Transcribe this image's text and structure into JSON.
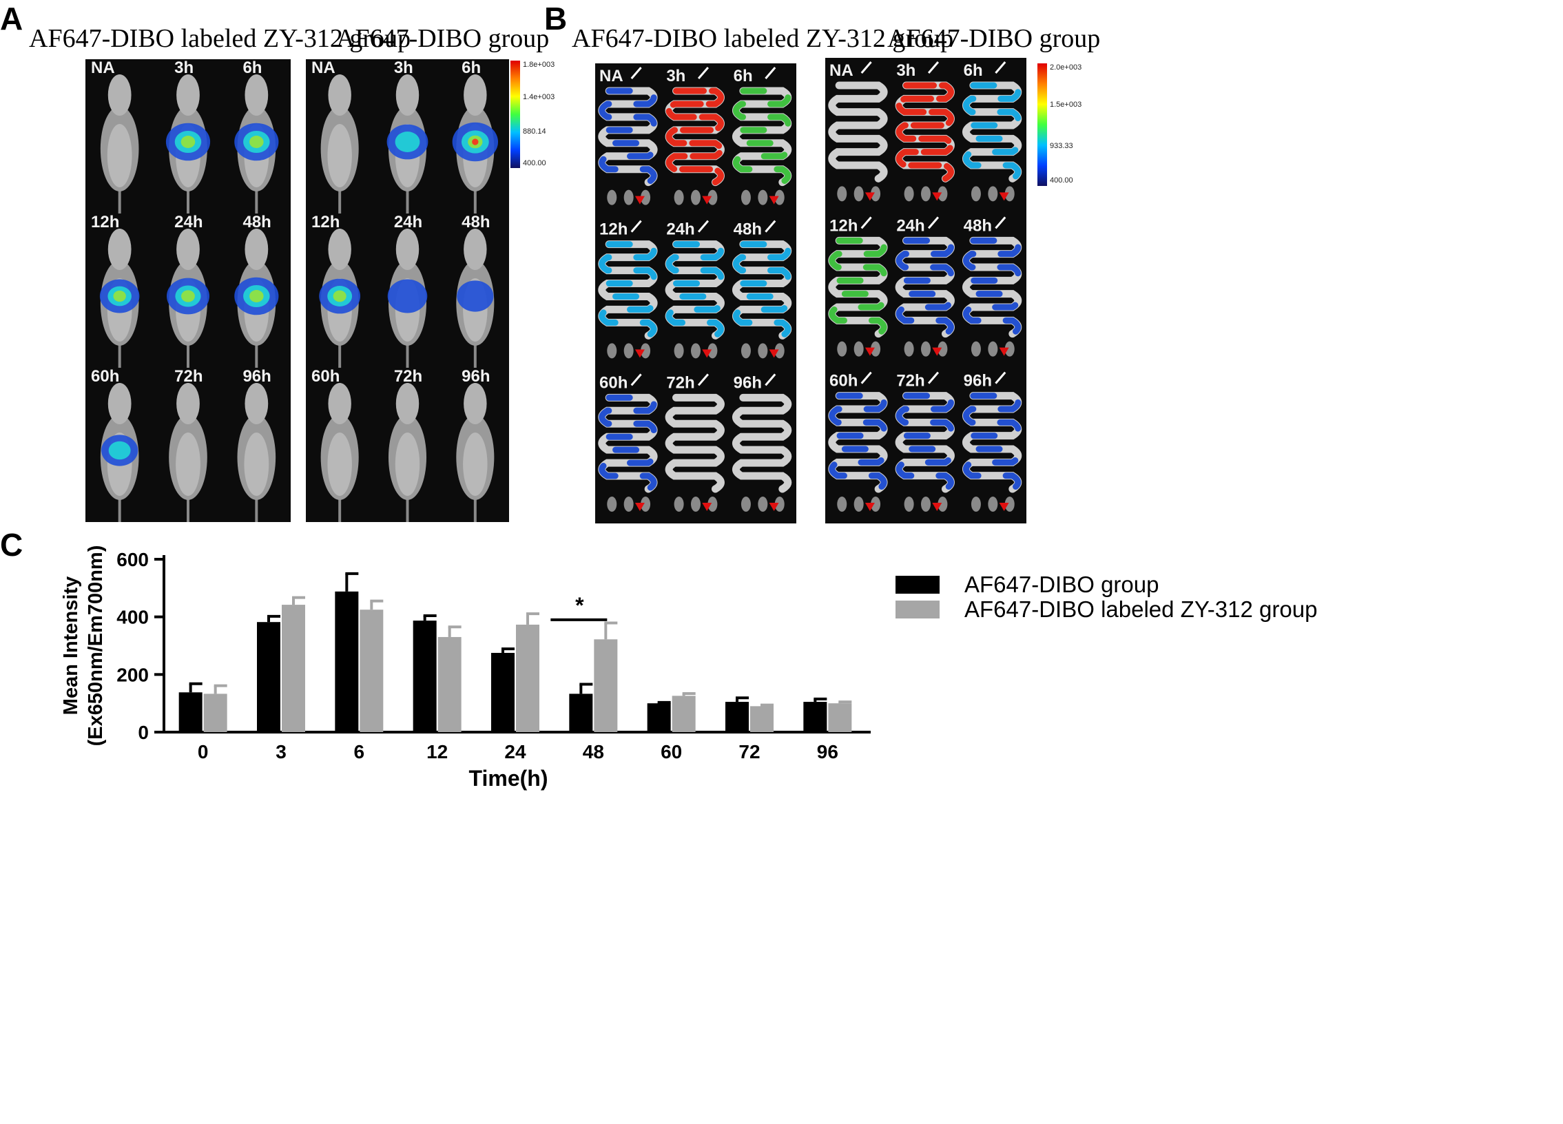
{
  "panel_a": {
    "label": "A",
    "group_titles": [
      "AF647-DIBO labeled ZY-312 group",
      "AF647-DIBO group"
    ],
    "time_labels": [
      "NA",
      "3h",
      "6h",
      "12h",
      "24h",
      "48h",
      "60h",
      "72h",
      "96h"
    ],
    "scale": {
      "max": "1.8e+003",
      "upper": "1.4e+003",
      "mid": "880.14",
      "min": "400.00"
    }
  },
  "panel_b": {
    "label": "B",
    "group_titles": [
      "AF647-DIBO labeled ZY-312 group",
      "AF647-DIBO group"
    ],
    "time_labels": [
      "NA",
      "3h",
      "6h",
      "12h",
      "24h",
      "48h",
      "60h",
      "72h",
      "96h"
    ],
    "scale": {
      "max": "2.0e+003",
      "upper": "1.5e+003",
      "mid": "933.33",
      "min": "400.00"
    }
  },
  "panel_c": {
    "label": "C",
    "significance": "*"
  },
  "colors": {
    "black_series": "#000000",
    "gray_series": "#a6a6a6",
    "panel_bg": "#0c0c0c",
    "arrow_red": "#e01010",
    "arrow_white": "#ffffff"
  },
  "chart_data": {
    "type": "bar",
    "xlabel": "Time(h)",
    "ylabel": "Mean Intensity (Ex650nm/Em700nm)",
    "categories": [
      "0",
      "3",
      "6",
      "12",
      "24",
      "48",
      "60",
      "72",
      "96"
    ],
    "ylim": [
      0,
      600
    ],
    "yticks": [
      "0",
      "200",
      "400",
      "600"
    ],
    "legend_position": "top-right",
    "series": [
      {
        "name": "AF647-DIBO group",
        "values": [
          138,
          382,
          488,
          387,
          275,
          133,
          100,
          105,
          105
        ],
        "errors": [
          30,
          20,
          62,
          17,
          14,
          33,
          3,
          14,
          10
        ]
      },
      {
        "name": "AF647-DIBO labeled ZY-312 group",
        "values": [
          133,
          442,
          425,
          330,
          373,
          322,
          126,
          90,
          100
        ],
        "errors": [
          28,
          25,
          30,
          35,
          38,
          57,
          8,
          4,
          5
        ]
      }
    ],
    "annotations": [
      {
        "category": "48",
        "text": "*"
      }
    ]
  }
}
